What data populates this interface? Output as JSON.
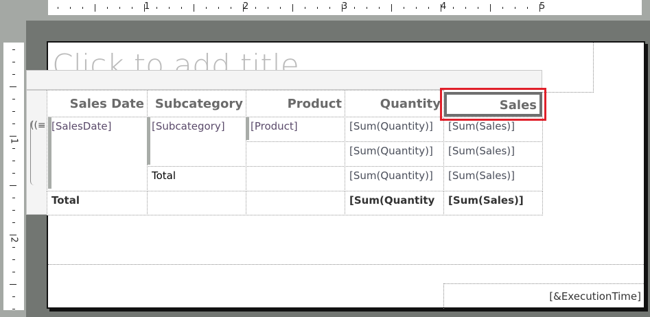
{
  "ruler": {
    "horizontal_numbers": [
      "1",
      "2",
      "3",
      "4",
      "5"
    ],
    "vertical_numbers": [
      "1",
      "2"
    ]
  },
  "title_placeholder": "Click to add title",
  "table": {
    "headers": [
      "Sales Date",
      "Subcategory",
      "Product",
      "Quantity",
      "Sales"
    ],
    "rows": [
      [
        "[SalesDate]",
        "[Subcategory]",
        "[Product]",
        "[Sum(Quantity)]",
        "[Sum(Sales)]"
      ],
      [
        "",
        "",
        "",
        "[Sum(Quantity)]",
        "[Sum(Sales)]"
      ],
      [
        "",
        "Total",
        "",
        "[Sum(Quantity)]",
        "[Sum(Sales)]"
      ],
      [
        "Total",
        "",
        "",
        "[Sum(Quantity",
        "[Sum(Sales)]"
      ]
    ],
    "selected_header": "Sales"
  },
  "footer": {
    "execution_time": "[&ExecutionTime]"
  },
  "colors": {
    "selection": "#e0202a",
    "canvas": "#727672"
  }
}
